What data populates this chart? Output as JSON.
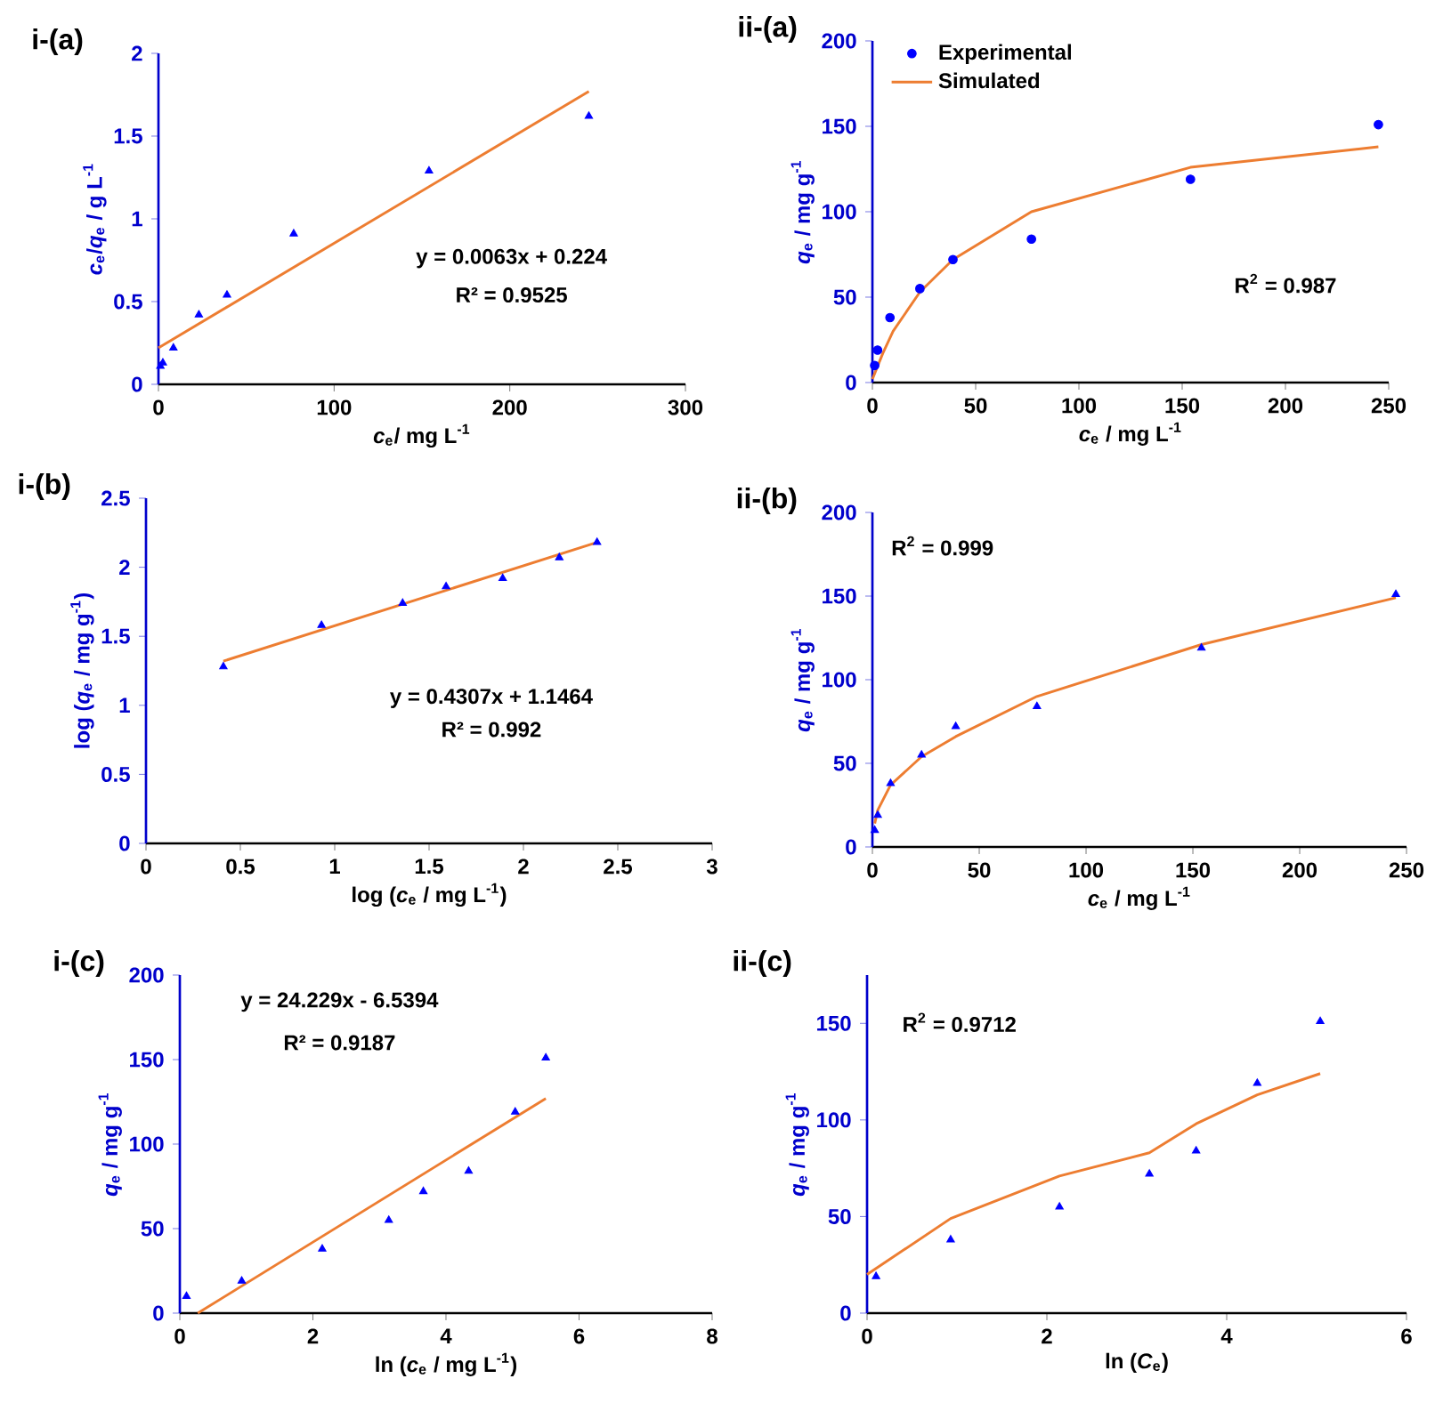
{
  "chart_data": [
    {
      "type": "scatter",
      "title": "i-(a)",
      "xlabel": "*c*$_{e}$/ mg L$^{-1}$",
      "ylabel": "*c*$_{e}$/*q*$_{e}$ / g L$^{-1}$",
      "xlim": [
        0,
        300
      ],
      "ylim": [
        0,
        2
      ],
      "xticks": [
        0,
        100,
        200,
        300
      ],
      "yticks": [
        0,
        0.5,
        1,
        1.5,
        2
      ],
      "annotations": [
        "y = 0.0063x + 0.224",
        "R² = 0.9525"
      ],
      "series": [
        {
          "color": "#0000ff",
          "marker": "triangle",
          "x": [
            1.1,
            2.5,
            8.5,
            23,
            39,
            77,
            154,
            245
          ],
          "values": [
            0.11,
            0.13,
            0.22,
            0.42,
            0.54,
            0.91,
            1.29,
            1.62
          ]
        },
        {
          "type": "line",
          "color": "#ed7d31",
          "x": [
            0,
            245
          ],
          "values": [
            0.22,
            1.77
          ]
        }
      ]
    },
    {
      "type": "scatter",
      "title": "ii-(a)",
      "xlabel": "*c*$_{e}$ / mg L$^{-1}$",
      "ylabel": "*q*$_{e}$ / mg g$^{-1}$",
      "xlim": [
        0,
        250
      ],
      "ylim": [
        0,
        200
      ],
      "xticks": [
        0,
        50,
        100,
        150,
        200,
        250
      ],
      "yticks": [
        0,
        50,
        100,
        150,
        200
      ],
      "legend": "top left",
      "annotations": [
        "R$^{2}$ = 0.987"
      ],
      "series": [
        {
          "name": "Experimental",
          "color": "#0000ff",
          "marker": "circle",
          "x": [
            1.1,
            2.5,
            8.5,
            23,
            39,
            77,
            154,
            245
          ],
          "values": [
            10,
            19,
            38,
            55,
            72,
            84,
            119,
            151
          ]
        },
        {
          "type": "line",
          "name": "Simulated",
          "color": "#ed7d31",
          "x": [
            0,
            5,
            10,
            23,
            39,
            77,
            154,
            245
          ],
          "values": [
            2,
            17,
            30,
            53,
            72,
            100,
            126,
            138
          ]
        }
      ]
    },
    {
      "type": "scatter",
      "title": "i-(b)",
      "xlabel": "log (*c*$_{e}$ / mg L$^{-1}$)",
      "ylabel": "log (*q*$_{e}$ / mg g$^{-1}$)",
      "xlim": [
        0,
        3
      ],
      "ylim": [
        0,
        2.5
      ],
      "xticks": [
        0,
        0.5,
        1,
        1.5,
        2,
        2.5,
        3
      ],
      "yticks": [
        0,
        0.5,
        1,
        1.5,
        2,
        2.5
      ],
      "annotations": [
        "y = 0.4307x + 1.1464",
        "R² = 0.992"
      ],
      "series": [
        {
          "color": "#0000ff",
          "marker": "triangle",
          "x": [
            0.41,
            0.93,
            1.36,
            1.59,
            1.89,
            2.19,
            2.39
          ],
          "values": [
            1.28,
            1.58,
            1.74,
            1.86,
            1.92,
            2.07,
            2.18
          ]
        },
        {
          "type": "line",
          "color": "#ed7d31",
          "x": [
            0.41,
            2.39
          ],
          "values": [
            1.32,
            2.18
          ]
        }
      ]
    },
    {
      "type": "scatter",
      "title": "ii-(b)",
      "xlabel": "*c*$_{e}$ / mg L$^{-1}$",
      "ylabel": "*q*$_{e}$ / mg g$^{-1}$",
      "xlim": [
        0,
        250
      ],
      "ylim": [
        0,
        200
      ],
      "xticks": [
        0,
        50,
        100,
        150,
        200,
        250
      ],
      "yticks": [
        0,
        50,
        100,
        150,
        200
      ],
      "annotations": [
        "R$^{2}$ = 0.999"
      ],
      "series": [
        {
          "color": "#0000ff",
          "marker": "triangle",
          "x": [
            1.1,
            2.5,
            8.5,
            23,
            39,
            77,
            154,
            245
          ],
          "values": [
            10,
            19,
            38,
            55,
            72,
            84,
            119,
            151
          ]
        },
        {
          "type": "line",
          "color": "#ed7d31",
          "x": [
            1.1,
            2.5,
            8.5,
            23,
            39,
            77,
            154,
            245
          ],
          "values": [
            14,
            22,
            37,
            54,
            66,
            90,
            121,
            149
          ]
        }
      ]
    },
    {
      "type": "scatter",
      "title": "i-(c)",
      "xlabel": "ln (*c*$_{e}$ / mg L$^{-1}$)",
      "ylabel": "*q*$_{e}$ / mg g$^{-1}$",
      "xlim": [
        0,
        8
      ],
      "ylim": [
        0,
        200
      ],
      "xticks": [
        0,
        2,
        4,
        6,
        8
      ],
      "yticks": [
        0,
        50,
        100,
        150,
        200
      ],
      "annotations": [
        "y = 24.229x - 6.5394",
        "R² = 0.9187"
      ],
      "series": [
        {
          "color": "#0000ff",
          "marker": "triangle",
          "x": [
            0.1,
            0.93,
            2.14,
            3.14,
            3.66,
            4.34,
            5.04,
            5.5
          ],
          "values": [
            10,
            19,
            38,
            55,
            72,
            84,
            119,
            151
          ]
        },
        {
          "type": "line",
          "color": "#ed7d31",
          "x": [
            0.27,
            5.5
          ],
          "values": [
            0,
            127
          ]
        }
      ]
    },
    {
      "type": "scatter",
      "title": "ii-(c)",
      "xlabel": "ln (*C*$_{e}$)",
      "ylabel": "*q*$_{e}$ / mg g$^{-1}$",
      "xlim": [
        0,
        6
      ],
      "ylim": [
        0,
        175
      ],
      "xticks": [
        0,
        2,
        4,
        6
      ],
      "yticks": [
        0,
        50,
        100,
        150
      ],
      "annotations": [
        "R$^{2}$ = 0.9712"
      ],
      "series": [
        {
          "color": "#0000ff",
          "marker": "triangle",
          "x": [
            0.1,
            0.93,
            2.14,
            3.14,
            3.66,
            4.34,
            5.04
          ],
          "values": [
            19,
            38,
            55,
            72,
            84,
            119,
            151
          ]
        },
        {
          "type": "line",
          "color": "#ed7d31",
          "x": [
            0,
            0.93,
            2.14,
            3.14,
            3.66,
            4.34,
            5.04
          ],
          "values": [
            20,
            49,
            71,
            83,
            98,
            113,
            124
          ]
        }
      ]
    }
  ]
}
